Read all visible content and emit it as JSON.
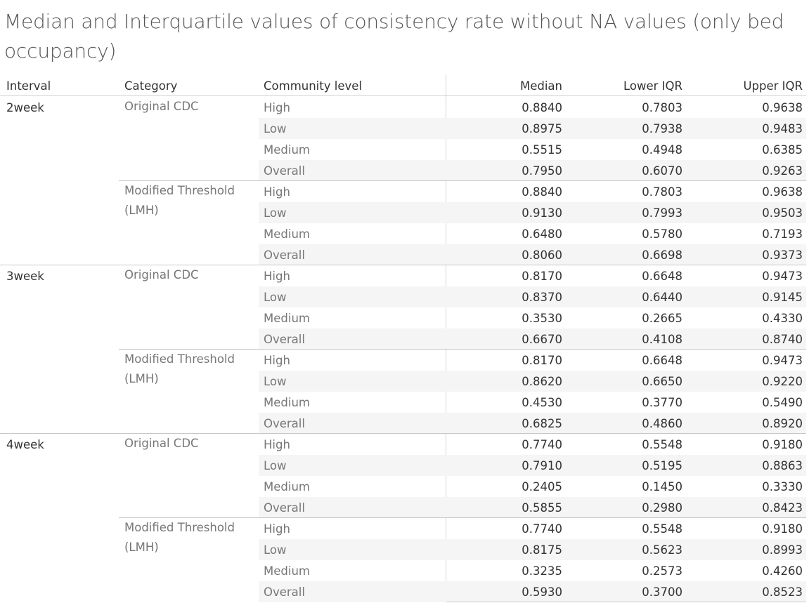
{
  "title": "Median and Interquartile values of consistency rate without NA values (only bed occupancy)",
  "chart_data": {
    "type": "table",
    "title": "Median and Interquartile values of consistency rate without NA values (only bed occupancy)",
    "columns": [
      "Interval",
      "Category",
      "Community level",
      "Median",
      "Lower IQR",
      "Upper IQR"
    ],
    "groups": [
      {
        "interval": "2week",
        "categories": [
          {
            "name": "Original CDC",
            "rows": [
              {
                "level": "High",
                "median": "0.8840",
                "lower": "0.7803",
                "upper": "0.9638"
              },
              {
                "level": "Low",
                "median": "0.8975",
                "lower": "0.7938",
                "upper": "0.9483"
              },
              {
                "level": "Medium",
                "median": "0.5515",
                "lower": "0.4948",
                "upper": "0.6385"
              },
              {
                "level": "Overall",
                "median": "0.7950",
                "lower": "0.6070",
                "upper": "0.9263"
              }
            ]
          },
          {
            "name": "Modified Threshold (LMH)",
            "rows": [
              {
                "level": "High",
                "median": "0.8840",
                "lower": "0.7803",
                "upper": "0.9638"
              },
              {
                "level": "Low",
                "median": "0.9130",
                "lower": "0.7993",
                "upper": "0.9503"
              },
              {
                "level": "Medium",
                "median": "0.6480",
                "lower": "0.5780",
                "upper": "0.7193"
              },
              {
                "level": "Overall",
                "median": "0.8060",
                "lower": "0.6698",
                "upper": "0.9373"
              }
            ]
          }
        ]
      },
      {
        "interval": "3week",
        "categories": [
          {
            "name": "Original CDC",
            "rows": [
              {
                "level": "High",
                "median": "0.8170",
                "lower": "0.6648",
                "upper": "0.9473"
              },
              {
                "level": "Low",
                "median": "0.8370",
                "lower": "0.6440",
                "upper": "0.9145"
              },
              {
                "level": "Medium",
                "median": "0.3530",
                "lower": "0.2665",
                "upper": "0.4330"
              },
              {
                "level": "Overall",
                "median": "0.6670",
                "lower": "0.4108",
                "upper": "0.8740"
              }
            ]
          },
          {
            "name": "Modified Threshold (LMH)",
            "rows": [
              {
                "level": "High",
                "median": "0.8170",
                "lower": "0.6648",
                "upper": "0.9473"
              },
              {
                "level": "Low",
                "median": "0.8620",
                "lower": "0.6650",
                "upper": "0.9220"
              },
              {
                "level": "Medium",
                "median": "0.4530",
                "lower": "0.3770",
                "upper": "0.5490"
              },
              {
                "level": "Overall",
                "median": "0.6825",
                "lower": "0.4860",
                "upper": "0.8920"
              }
            ]
          }
        ]
      },
      {
        "interval": "4week",
        "categories": [
          {
            "name": "Original CDC",
            "rows": [
              {
                "level": "High",
                "median": "0.7740",
                "lower": "0.5548",
                "upper": "0.9180"
              },
              {
                "level": "Low",
                "median": "0.7910",
                "lower": "0.5195",
                "upper": "0.8863"
              },
              {
                "level": "Medium",
                "median": "0.2405",
                "lower": "0.1450",
                "upper": "0.3330"
              },
              {
                "level": "Overall",
                "median": "0.5855",
                "lower": "0.2980",
                "upper": "0.8423"
              }
            ]
          },
          {
            "name": "Modified Threshold (LMH)",
            "rows": [
              {
                "level": "High",
                "median": "0.7740",
                "lower": "0.5548",
                "upper": "0.9180"
              },
              {
                "level": "Low",
                "median": "0.8175",
                "lower": "0.5623",
                "upper": "0.8993"
              },
              {
                "level": "Medium",
                "median": "0.3235",
                "lower": "0.2573",
                "upper": "0.4260"
              },
              {
                "level": "Overall",
                "median": "0.5930",
                "lower": "0.3700",
                "upper": "0.8523"
              }
            ]
          }
        ]
      }
    ]
  }
}
